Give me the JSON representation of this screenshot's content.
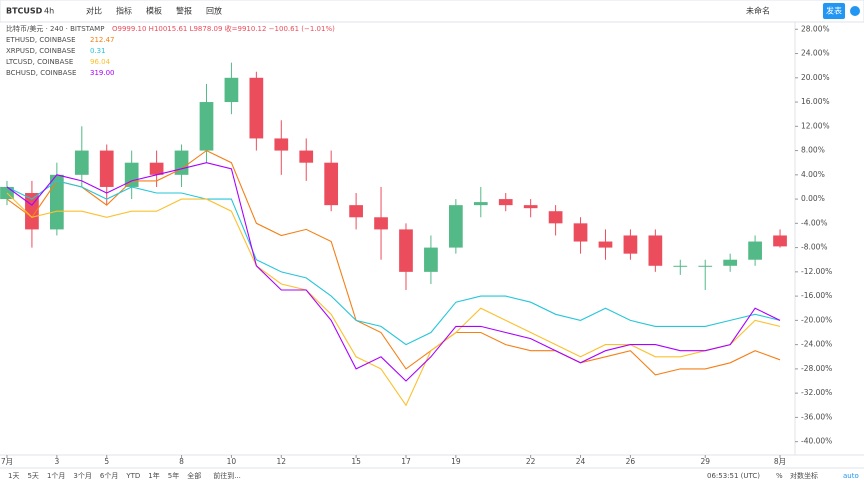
{
  "toolbar": {
    "symbol": "BTCUSD",
    "interval": "4h",
    "compare": "对比",
    "indicators": "指标",
    "templates": "模板",
    "alert": "警报",
    "replay": "回放",
    "layout": "未命名",
    "publish": "发表"
  },
  "legend": {
    "main": "比特币/美元 · 240 · BITSTAMP",
    "ohlc": "O9999.10 H10015.61 L9878.09 收=9910.12 −100.61 (−1.01%)"
  },
  "chart_data": {
    "type": "candlestick",
    "x": [
      1,
      2,
      3,
      4,
      5,
      6,
      7,
      8,
      9,
      10,
      11,
      12,
      13,
      14,
      15,
      16,
      17,
      18,
      19,
      20,
      21,
      22,
      23,
      24,
      25,
      26,
      27,
      28,
      29,
      30,
      31,
      32
    ],
    "candles": {
      "open": [
        0,
        1,
        -5,
        4,
        8,
        2,
        6,
        4,
        8,
        16,
        20,
        10,
        8,
        6,
        -1,
        -3,
        -5,
        -12,
        -8,
        -1,
        0,
        -1,
        -2,
        -4,
        -7,
        -6,
        -6,
        -11,
        -11,
        -11,
        -10,
        -6
      ],
      "high": [
        3,
        3,
        6,
        12,
        9,
        8,
        8,
        9,
        19,
        22.5,
        21,
        13,
        10,
        8,
        1,
        2,
        -4,
        -6,
        0,
        2,
        1,
        0,
        -1,
        -3,
        -5,
        -5,
        -5,
        -10,
        -10,
        -9,
        -6,
        -5
      ],
      "low": [
        -1,
        -8,
        -6,
        2,
        -1,
        0,
        2,
        2,
        6,
        14,
        8,
        4,
        3,
        -2,
        -5,
        -10,
        -15,
        -14,
        -9,
        -3,
        -2,
        -3,
        -6,
        -9,
        -10,
        -10,
        -12,
        -12.5,
        -15,
        -12,
        -11,
        -8
      ],
      "close": [
        2,
        -5,
        4,
        8,
        2,
        6,
        4,
        8,
        16,
        20,
        10,
        8,
        6,
        -1,
        -3,
        -5,
        -12,
        -8,
        -1,
        -0.5,
        -1,
        -1.5,
        -4,
        -7,
        -8,
        -9,
        -11,
        -11,
        -11,
        -10,
        -7,
        -7.8
      ],
      "up_color": "#53b987",
      "down_color": "#eb4d5c"
    },
    "series": [
      {
        "name": "ETHUSD, COINBASE",
        "last": "212.47",
        "color": "#f57f17",
        "values": [
          0,
          -3,
          3,
          2,
          -1,
          3,
          3,
          5,
          8,
          6,
          -4,
          -6,
          -5,
          -7,
          -20,
          -22,
          -28,
          -25,
          -22,
          -22,
          -24,
          -25,
          -25,
          -27,
          -26,
          -25,
          -29,
          -28,
          -28,
          -27,
          -25,
          -26.5
        ]
      },
      {
        "name": "XRPUSD, COINBASE",
        "last": "0.31",
        "color": "#26c6da",
        "values": [
          2,
          0,
          3,
          2,
          0,
          2,
          1,
          1,
          0,
          0,
          -10,
          -12,
          -13,
          -16,
          -20,
          -21,
          -24,
          -22,
          -17,
          -16,
          -16,
          -17,
          -19,
          -20,
          -18,
          -20,
          -21,
          -21,
          -21,
          -20,
          -19,
          -20
        ]
      },
      {
        "name": "LTCUSD, COINBASE",
        "last": "96.04",
        "color": "#fbc02d",
        "values": [
          1,
          -3,
          -2,
          -2,
          -3,
          -2,
          -2,
          0,
          0,
          -2,
          -11,
          -14,
          -15,
          -19,
          -26,
          -28,
          -34,
          -25,
          -22,
          -18,
          -20,
          -22,
          -24,
          -26,
          -24,
          -24,
          -26,
          -26,
          -25,
          -24,
          -20,
          -21
        ]
      },
      {
        "name": "BCHUSD, COINBASE",
        "last": "319.00",
        "color": "#aa00ff",
        "values": [
          2,
          -1,
          4,
          3,
          1,
          3,
          4,
          5,
          6,
          5,
          -11,
          -15,
          -15,
          -20,
          -28,
          -26,
          -30,
          -26,
          -21,
          -21,
          -22,
          -23,
          -25,
          -27,
          -25,
          -24,
          -24,
          -25,
          -25,
          -24,
          -18,
          -20
        ]
      }
    ],
    "xlim": [
      0.72,
      32.6
    ],
    "xticks": [
      {
        "value": 1,
        "label": "7月"
      },
      3,
      5,
      8,
      10,
      12,
      15,
      17,
      19,
      22,
      24,
      26,
      29,
      {
        "value": 32,
        "label": "8月"
      }
    ],
    "ylim": [
      -42.2,
      29.2
    ],
    "yticks": [
      {
        "value": 28,
        "label": "28.00%"
      },
      {
        "value": 24,
        "label": "24.00%"
      },
      {
        "value": 20,
        "label": "20.00%"
      },
      {
        "value": 16,
        "label": "16.00%"
      },
      {
        "value": 12,
        "label": "12.00%"
      },
      {
        "value": 8,
        "label": "8.00%"
      },
      {
        "value": 4,
        "label": "4.00%"
      },
      {
        "value": 0,
        "label": "0.00%"
      },
      {
        "value": -4,
        "label": "-4.00%"
      },
      {
        "value": -8,
        "label": "-8.00%"
      },
      {
        "value": -12,
        "label": "-12.00%"
      },
      {
        "value": -16,
        "label": "-16.00%"
      },
      {
        "value": -20,
        "label": "-20.00%"
      },
      {
        "value": -24,
        "label": "-24.00%"
      },
      {
        "value": -28,
        "label": "-28.00%"
      },
      {
        "value": -32,
        "label": "-32.00%"
      },
      {
        "value": -36,
        "label": "-36.00%"
      },
      {
        "value": -40,
        "label": "-40.00%"
      }
    ],
    "grid": false
  },
  "footer": {
    "ranges": [
      "1天",
      "5天",
      "1个月",
      "3个月",
      "6个月",
      "YTD",
      "1年",
      "5年",
      "全部"
    ],
    "goto": "前往到...",
    "time": "06:53:51 (UTC)",
    "percent": "%",
    "log": "对数坐标",
    "auto": "auto"
  }
}
